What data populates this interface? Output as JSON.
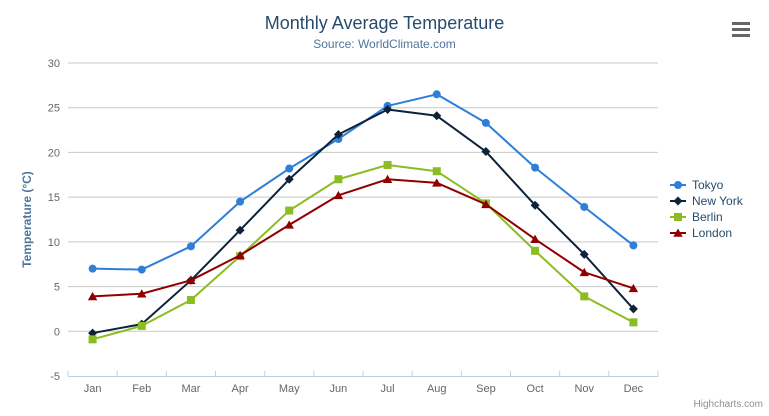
{
  "chart": {
    "title": "Monthly Average Temperature",
    "subtitle": "Source: WorldClimate.com",
    "credits": "Highcharts.com",
    "context_menu_icon": "hamburger-icon"
  },
  "chart_data": {
    "type": "line",
    "title": "Monthly Average Temperature",
    "subtitle": "Source: WorldClimate.com",
    "xlabel": "",
    "ylabel": "Temperature (°C)",
    "ylim": [
      -5,
      30
    ],
    "ytick_step": 5,
    "grid": true,
    "legend_position": "right",
    "categories": [
      "Jan",
      "Feb",
      "Mar",
      "Apr",
      "May",
      "Jun",
      "Jul",
      "Aug",
      "Sep",
      "Oct",
      "Nov",
      "Dec"
    ],
    "series": [
      {
        "name": "Tokyo",
        "color": "#2f7ed8",
        "marker": "circle",
        "values": [
          7.0,
          6.9,
          9.5,
          14.5,
          18.2,
          21.5,
          25.2,
          26.5,
          23.3,
          18.3,
          13.9,
          9.6
        ]
      },
      {
        "name": "New York",
        "color": "#0d233a",
        "marker": "diamond",
        "values": [
          -0.2,
          0.8,
          5.7,
          11.3,
          17.0,
          22.0,
          24.8,
          24.1,
          20.1,
          14.1,
          8.6,
          2.5
        ]
      },
      {
        "name": "Berlin",
        "color": "#8bbc21",
        "marker": "square",
        "values": [
          -0.9,
          0.6,
          3.5,
          8.4,
          13.5,
          17.0,
          18.6,
          17.9,
          14.3,
          9.0,
          3.9,
          1.0
        ]
      },
      {
        "name": "London",
        "color": "#910000",
        "marker": "triangle",
        "values": [
          3.9,
          4.2,
          5.7,
          8.5,
          11.9,
          15.2,
          17.0,
          16.6,
          14.2,
          10.3,
          6.6,
          4.8
        ]
      }
    ],
    "style": {
      "axis_label_color": "#666666",
      "grid_color": "#c8c8c8",
      "axis_line_color": "#c0d0e0",
      "y_axis_title_color": "#4d759e",
      "legend_text_color": "#274b6d",
      "title_color": "#274b6d",
      "subtitle_color": "#4d759e",
      "credits_color": "#909090"
    }
  }
}
